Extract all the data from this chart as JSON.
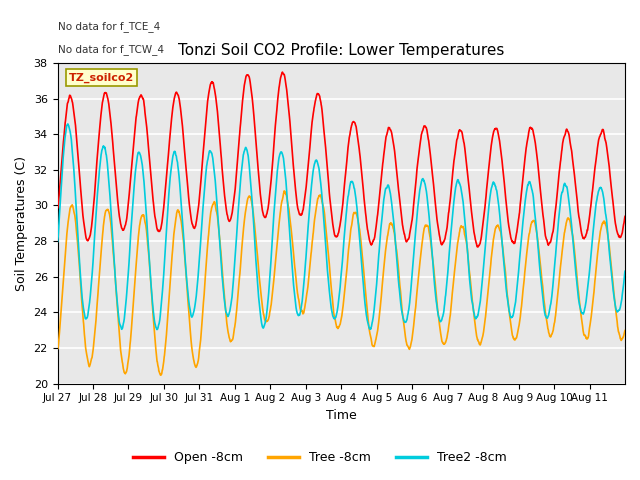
{
  "title": "Tonzi Soil CO2 Profile: Lower Temperatures",
  "xlabel": "Time",
  "ylabel": "Soil Temperatures (C)",
  "ylim": [
    20,
    38
  ],
  "yticks": [
    20,
    22,
    24,
    26,
    28,
    30,
    32,
    34,
    36,
    38
  ],
  "background_color": "#ffffff",
  "plot_bg_color": "#e8e8e8",
  "grid_color": "#ffffff",
  "annotations": [
    "No data for f_TCE_4",
    "No data for f_TCW_4"
  ],
  "legend_label": "TZ_soilco2",
  "series_labels": [
    "Open -8cm",
    "Tree -8cm",
    "Tree2 -8cm"
  ],
  "series_colors": [
    "#ff0000",
    "#ffa500",
    "#00ccdd"
  ],
  "line_width": 1.2,
  "xtick_labels": [
    "Jul 27",
    "Jul 28",
    "Jul 29",
    "Jul 30",
    "Jul 31",
    "Aug 1",
    "Aug 2",
    "Aug 3",
    "Aug 4",
    "Aug 5",
    "Aug 6",
    "Aug 7",
    "Aug 8",
    "Aug 9",
    "Aug 10",
    "Aug 11"
  ],
  "n_days": 16,
  "samples_per_day": 144
}
